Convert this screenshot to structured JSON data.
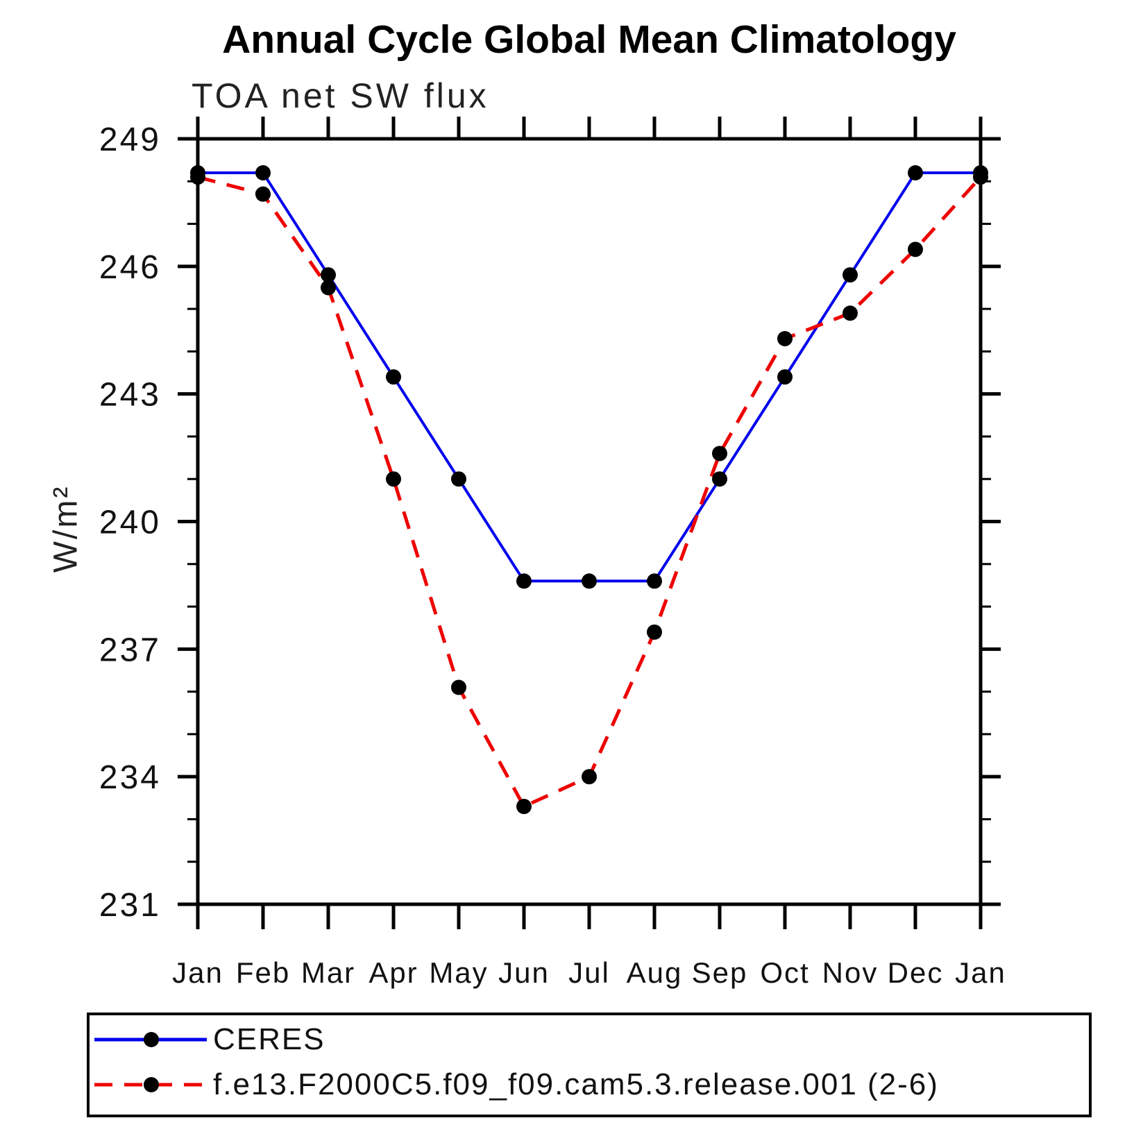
{
  "title": "Annual Cycle Global Mean Climatology",
  "subtitle": "TOA net SW flux",
  "ylabel": "W/m²",
  "colors": {
    "ceres_line": "#0000ee",
    "model_line": "#ee0000",
    "marker": "#000000",
    "axis": "#000000"
  },
  "legend": {
    "entries": [
      {
        "label": "CERES",
        "color": "#0000ee",
        "style": "solid"
      },
      {
        "label": "f.e13.F2000C5.f09_f09.cam5.3.release.001 (2-6)",
        "color": "#ee0000",
        "style": "dashed"
      }
    ]
  },
  "chart_data": {
    "type": "line",
    "title": "Annual Cycle Global Mean Climatology",
    "subtitle": "TOA net SW flux",
    "xlabel": "",
    "ylabel": "W/m²",
    "categories": [
      "Jan",
      "Feb",
      "Mar",
      "Apr",
      "May",
      "Jun",
      "Jul",
      "Aug",
      "Sep",
      "Oct",
      "Nov",
      "Dec",
      "Jan"
    ],
    "series": [
      {
        "name": "CERES",
        "color": "#0000ee",
        "line_style": "solid",
        "line_width": 4,
        "marker": "filled-circle",
        "marker_color": "#000000",
        "values": [
          248.2,
          248.2,
          245.8,
          243.4,
          241.0,
          238.6,
          238.6,
          238.6,
          241.0,
          243.4,
          245.8,
          248.2,
          248.2
        ]
      },
      {
        "name": "f.e13.F2000C5.f09_f09.cam5.3.release.001 (2-6)",
        "color": "#ee0000",
        "line_style": "dashed",
        "line_width": 5,
        "marker": "filled-circle",
        "marker_color": "#000000",
        "values": [
          248.1,
          247.7,
          245.5,
          241.0,
          236.1,
          233.3,
          234.0,
          237.4,
          241.6,
          244.3,
          244.9,
          246.4,
          248.1
        ]
      }
    ],
    "ylim": [
      231,
      249
    ],
    "yticks_major": [
      231,
      234,
      237,
      240,
      243,
      246,
      249
    ],
    "yticks_minor_interval": 1,
    "grid": false,
    "legend_position": "bottom-left-box"
  }
}
